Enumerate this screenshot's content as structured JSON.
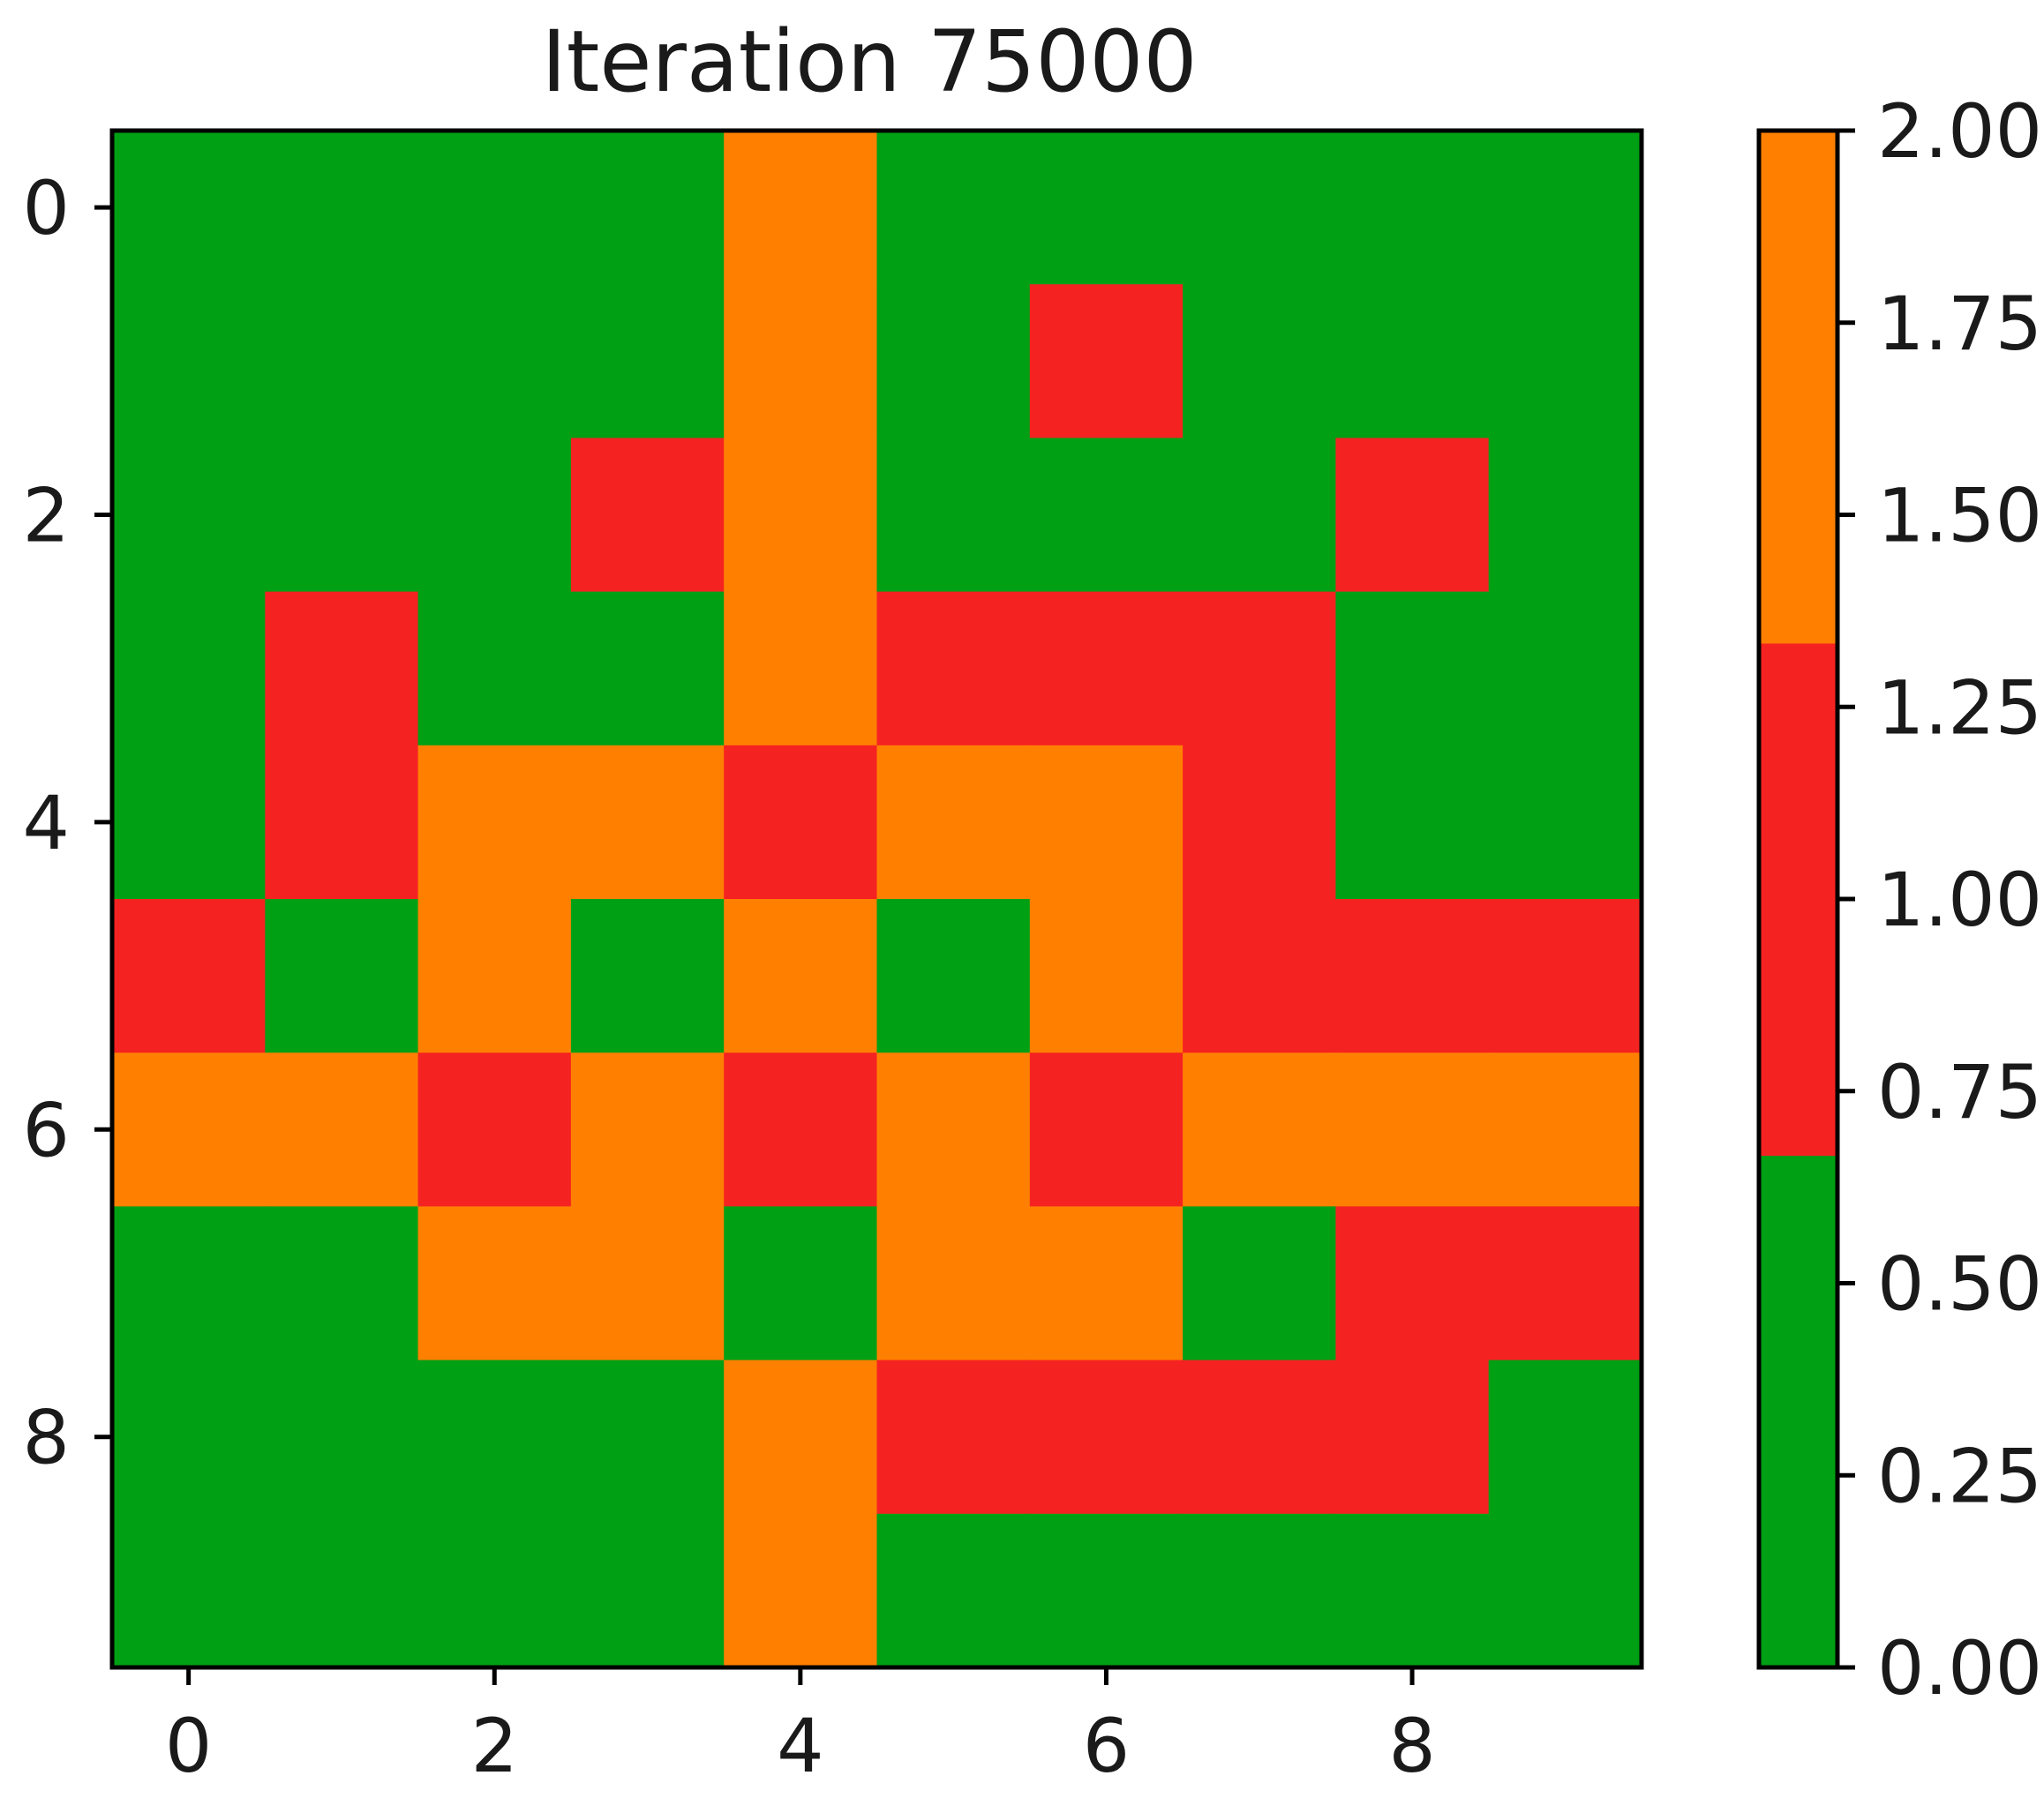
{
  "chart_data": {
    "type": "heatmap",
    "title": "Iteration 75000",
    "xlabel": "",
    "ylabel": "",
    "x_ticks": [
      "0",
      "2",
      "4",
      "6",
      "8"
    ],
    "y_ticks": [
      "0",
      "2",
      "4",
      "6",
      "8"
    ],
    "x_range": [
      -0.5,
      9.5
    ],
    "y_range": [
      -0.5,
      9.5
    ],
    "y_axis_inverted": true,
    "grid": false,
    "colorbar": {
      "range": [
        0.0,
        2.0
      ],
      "ticks": [
        "0.00",
        "0.25",
        "0.50",
        "0.75",
        "1.00",
        "1.25",
        "1.50",
        "1.75",
        "2.00"
      ],
      "placement": "right",
      "colors": [
        "#00a014",
        "#f52222",
        "#ff8000"
      ]
    },
    "values": [
      [
        0,
        0,
        0,
        0,
        2,
        0,
        0,
        0,
        0,
        0
      ],
      [
        0,
        0,
        0,
        0,
        2,
        0,
        1,
        0,
        0,
        0
      ],
      [
        0,
        0,
        0,
        1,
        2,
        0,
        0,
        0,
        1,
        0
      ],
      [
        0,
        1,
        0,
        0,
        2,
        1,
        1,
        1,
        0,
        0
      ],
      [
        0,
        1,
        2,
        2,
        1,
        2,
        2,
        1,
        0,
        0
      ],
      [
        1,
        0,
        2,
        0,
        2,
        0,
        2,
        1,
        1,
        1
      ],
      [
        2,
        2,
        1,
        2,
        1,
        2,
        1,
        2,
        2,
        2
      ],
      [
        0,
        0,
        2,
        2,
        0,
        2,
        2,
        0,
        1,
        1
      ],
      [
        0,
        0,
        0,
        0,
        2,
        1,
        1,
        1,
        1,
        0
      ],
      [
        0,
        0,
        0,
        0,
        2,
        0,
        0,
        0,
        0,
        0
      ]
    ]
  }
}
